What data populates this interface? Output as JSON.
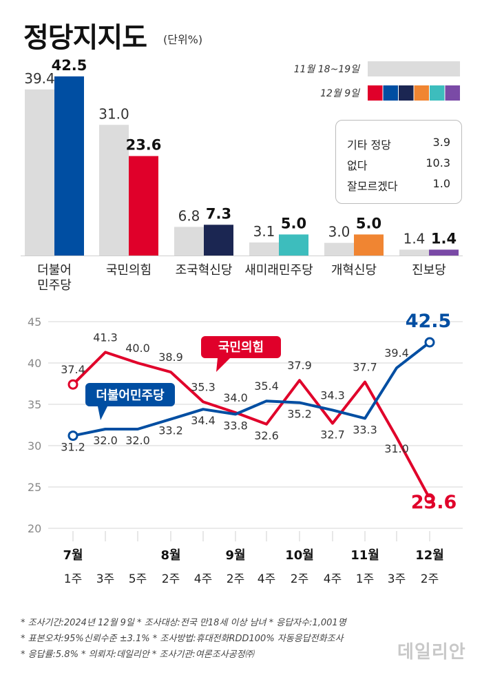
{
  "header": {
    "title": "정당지지도",
    "unit": "(단위%)"
  },
  "legend": {
    "prev_label": "11월 18~19일",
    "curr_label": "12월 9일",
    "prev_color": "#dcdcdc",
    "party_colors": [
      "#e0002a",
      "#004ea2",
      "#1b2652",
      "#f08532",
      "#3dbdbd",
      "#7a4aa6"
    ]
  },
  "others_box": {
    "rows": [
      {
        "label": "기타 정당",
        "value": "3.9"
      },
      {
        "label": "없다",
        "value": "10.3"
      },
      {
        "label": "잘모르겠다",
        "value": "1.0"
      }
    ]
  },
  "chart_data": [
    {
      "type": "bar",
      "title": "정당지지도",
      "unit": "(단위%)",
      "categories": [
        "더불어민주당",
        "국민의힘",
        "조국혁신당",
        "새미래민주당",
        "개혁신당",
        "진보당"
      ],
      "category_display": [
        [
          "더불어",
          "민주당"
        ],
        [
          "국민의힘"
        ],
        [
          "조국혁신당"
        ],
        [
          "새미래민주당"
        ],
        [
          "개혁신당"
        ],
        [
          "진보당"
        ]
      ],
      "series": [
        {
          "name": "11월 18~19일",
          "values": [
            39.4,
            31.0,
            6.8,
            3.1,
            3.0,
            1.4
          ],
          "labels": [
            "39.4",
            "31.0",
            "6.8",
            "3.1",
            "3.0",
            "1.4"
          ]
        },
        {
          "name": "12월 9일",
          "values": [
            42.5,
            23.6,
            7.3,
            5.0,
            5.0,
            1.4
          ],
          "labels": [
            "42.5",
            "23.6",
            "7.3",
            "5.0",
            "5.0",
            "1.4"
          ]
        }
      ],
      "colors": [
        "#004ea2",
        "#e0002a",
        "#1b2652",
        "#3dbdbd",
        "#f08532",
        "#7a4aa6"
      ]
    },
    {
      "type": "line",
      "ylim": [
        20,
        45
      ],
      "yticks": [
        "20",
        "25",
        "30",
        "35",
        "40",
        "45"
      ],
      "x_weeks": [
        "1주",
        "3주",
        "5주",
        "2주",
        "4주",
        "2주",
        "4주",
        "2주",
        "4주",
        "1주",
        "3주",
        "2주"
      ],
      "x_months": [
        {
          "label": "7월",
          "index": 0
        },
        {
          "label": "8월",
          "index": 3
        },
        {
          "label": "9월",
          "index": 5
        },
        {
          "label": "10월",
          "index": 7
        },
        {
          "label": "11월",
          "index": 9
        },
        {
          "label": "12월",
          "index": 11
        }
      ],
      "series": [
        {
          "name": "더불어민주당",
          "color": "#004ea2",
          "values": [
            31.2,
            32.0,
            32.0,
            33.2,
            34.4,
            33.8,
            35.4,
            35.2,
            34.3,
            33.3,
            39.4,
            42.5
          ],
          "labels": [
            "31.2",
            "32.0",
            "32.0",
            "33.2",
            "34.4",
            "33.8",
            "35.4",
            "35.2",
            "34.3",
            "33.3",
            "39.4",
            "42.5"
          ]
        },
        {
          "name": "국민의힘",
          "color": "#e0002a",
          "values": [
            37.4,
            41.3,
            40.0,
            38.9,
            35.3,
            34.0,
            32.6,
            37.9,
            32.7,
            37.7,
            31.0,
            23.6
          ],
          "labels": [
            "37.4",
            "41.3",
            "40.0",
            "38.9",
            "35.3",
            "34.0",
            "32.6",
            "37.9",
            "32.7",
            "37.7",
            "31.0",
            "23.6"
          ]
        }
      ]
    }
  ],
  "notes": [
    "* 조사기간:2024년 12월 9일  * 조사대상:전국 만18세 이상 남녀  * 응답자수:1,001명",
    "* 표본오차:95%신뢰수준 ±3.1%  * 조사방법:휴대전화RDD100% 자동응답전화조사",
    "* 응답률:5.8%  * 의뢰자:데일리안  * 조사기관:여론조사공정㈜"
  ],
  "watermark": "데일리안"
}
